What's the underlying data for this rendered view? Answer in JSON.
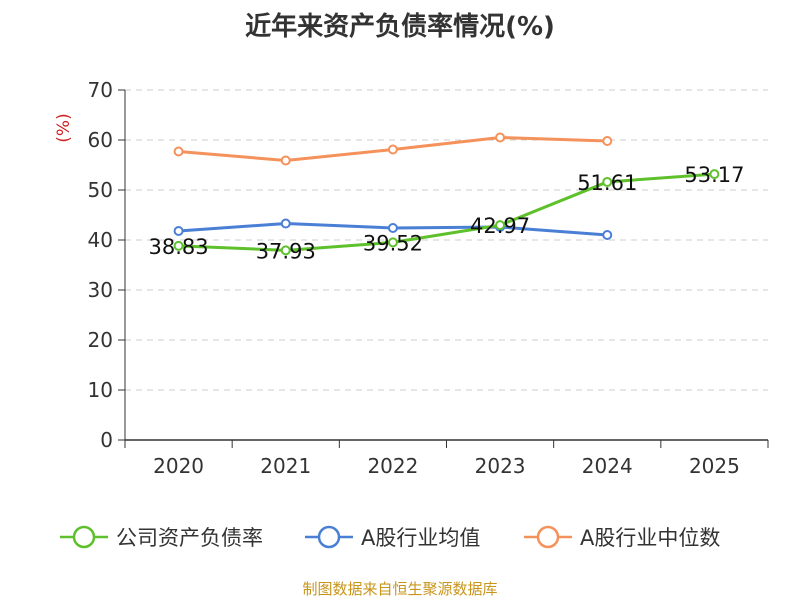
{
  "chart_data": {
    "type": "line",
    "title": "近年来资产负债率情况(%)",
    "ylabel": "(%)",
    "categories": [
      "2020",
      "2021",
      "2022",
      "2023",
      "2024",
      "2025"
    ],
    "ylim": [
      0,
      70
    ],
    "yticks": [
      0,
      10,
      20,
      30,
      40,
      50,
      60,
      70
    ],
    "grid": true,
    "legend_position": "bottom",
    "series": [
      {
        "name": "公司资产负债率",
        "color": "#5ec12c",
        "values": [
          38.83,
          37.93,
          39.52,
          42.97,
          51.61,
          53.17
        ],
        "labels": [
          "38.83",
          "37.93",
          "39.52",
          "42.97",
          "51.61",
          "53.17"
        ]
      },
      {
        "name": "A股行业均值",
        "color": "#4a7fd6",
        "values": [
          41.8,
          43.3,
          42.4,
          42.6,
          41.0,
          null
        ]
      },
      {
        "name": "A股行业中位数",
        "color": "#f5915a",
        "values": [
          57.7,
          55.9,
          58.1,
          60.5,
          59.8,
          null
        ]
      }
    ]
  },
  "footer": {
    "source": "制图数据来自恒生聚源数据库"
  }
}
